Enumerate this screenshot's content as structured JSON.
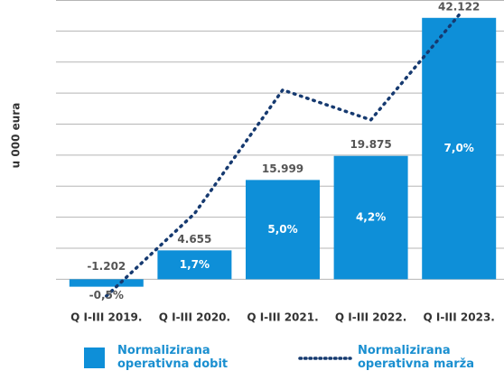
{
  "chart_data": {
    "type": "bar_line",
    "y_label": "u 000 eura",
    "categories": [
      "Q I-III 2019.",
      "Q I-III 2020.",
      "Q I-III 2021.",
      "Q I-III 2022.",
      "Q I-III 2023."
    ],
    "series": [
      {
        "name": "Normalizirana operativna dobit",
        "type": "bar",
        "color": "#0e8fd8",
        "values": [
          -1202,
          4655,
          15999,
          19875,
          42122
        ],
        "value_labels": [
          "-1.202",
          "4.655",
          "15.999",
          "19.875",
          "42.122"
        ]
      },
      {
        "name": "Normalizirana operativna marža",
        "type": "line",
        "axis": "y2",
        "color": "#163a70",
        "values": [
          -0.5,
          1.7,
          5.0,
          4.2,
          7.0
        ],
        "value_labels": [
          "-0,5%",
          "1,7%",
          "5,0%",
          "4,2%",
          "7,0%"
        ]
      }
    ],
    "ylim": [
      -3000,
      45000
    ],
    "yticks": [
      0,
      5000,
      10000,
      15000,
      20000,
      25000,
      30000,
      35000,
      40000,
      45000
    ],
    "y2lim": [
      -0.55,
      7.4
    ],
    "grid": true
  }
}
